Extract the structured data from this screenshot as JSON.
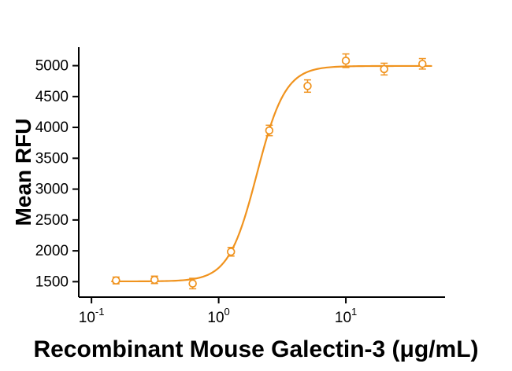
{
  "chart_data": {
    "type": "scatter",
    "subtype": "dose-response-4pl-fit",
    "title": "",
    "xlabel": "Recombinant Mouse Galectin-3 (μg/mL)",
    "ylabel": "Mean RFU",
    "x_scale": "log10",
    "grid": false,
    "legend": "none",
    "accent_color": "#F0931E",
    "axis_color": "#000000",
    "xlim_log": [
      -1.1,
      1.78
    ],
    "ylim": [
      1250,
      5300
    ],
    "x_ticks": [
      {
        "value": 0.1,
        "label_base": "10",
        "label_exp": "-1"
      },
      {
        "value": 1,
        "label_base": "10",
        "label_exp": "0"
      },
      {
        "value": 10,
        "label_base": "10",
        "label_exp": "1"
      }
    ],
    "y_ticks": [
      1500,
      2000,
      2500,
      3000,
      3500,
      4000,
      4500,
      5000
    ],
    "points": [
      {
        "x": 0.156,
        "y": 1520,
        "err": 55
      },
      {
        "x": 0.313,
        "y": 1530,
        "err": 60
      },
      {
        "x": 0.625,
        "y": 1470,
        "err": 85
      },
      {
        "x": 1.25,
        "y": 1985,
        "err": 70
      },
      {
        "x": 2.5,
        "y": 3950,
        "err": 85
      },
      {
        "x": 5,
        "y": 4670,
        "err": 100
      },
      {
        "x": 10,
        "y": 5080,
        "err": 110
      },
      {
        "x": 20,
        "y": 4945,
        "err": 95
      },
      {
        "x": 40,
        "y": 5030,
        "err": 85
      }
    ],
    "fit_curve": {
      "model": "4PL",
      "bottom": 1505,
      "top": 4995,
      "ec50": 2.0,
      "hill": 3.9,
      "x_start": 0.145,
      "x_end": 47
    }
  }
}
